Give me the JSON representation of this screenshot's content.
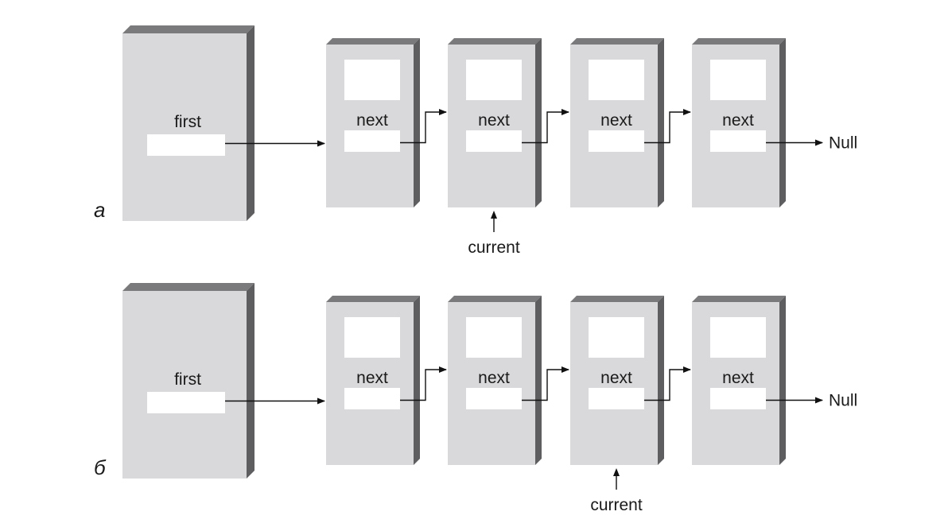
{
  "panels": [
    {
      "id": "a",
      "letter": "а",
      "head_label": "first",
      "node_labels": [
        "next",
        "next",
        "next",
        "next"
      ],
      "terminator": "Null",
      "pointer_label": "current",
      "current_node_index": 1
    },
    {
      "id": "b",
      "letter": "б",
      "head_label": "first",
      "node_labels": [
        "next",
        "next",
        "next",
        "next"
      ],
      "terminator": "Null",
      "pointer_label": "current",
      "current_node_index": 2
    }
  ],
  "colors": {
    "box_front": "#d9d9db",
    "box_top": "#7a7a7c",
    "box_side": "#5e5e60",
    "slot": "#ffffff",
    "line": "#111111"
  }
}
